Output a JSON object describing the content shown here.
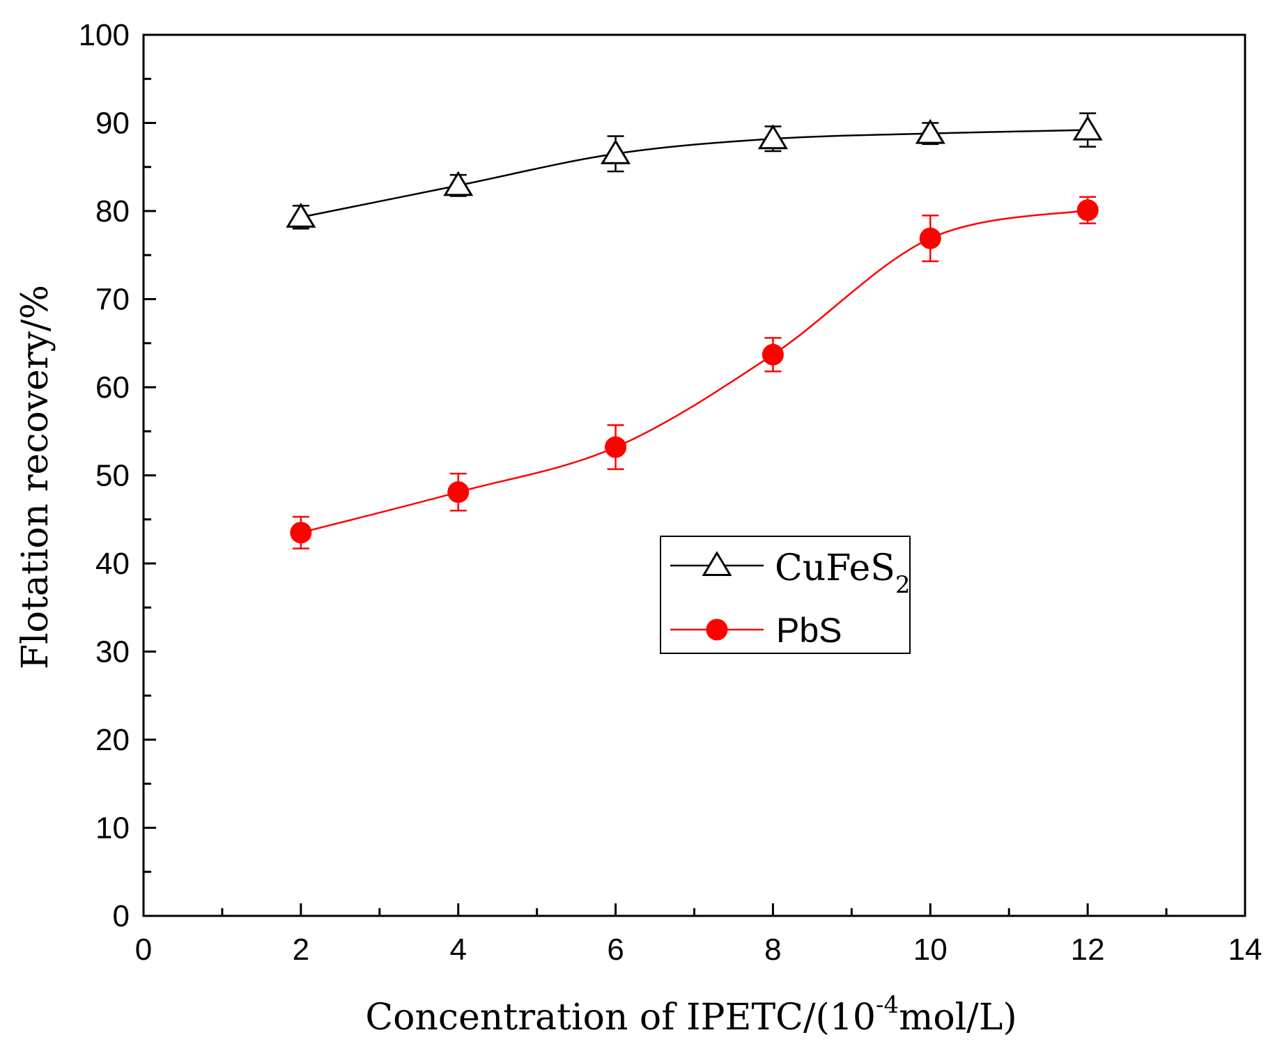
{
  "chart_data": {
    "type": "line",
    "title": "",
    "xlabel": "Concentration of IPETC/(10",
    "xlabel_superscript": "-4",
    "xlabel_suffix": "mol/L)",
    "ylabel": "Flotation recovery/%",
    "xlim": [
      0,
      14
    ],
    "ylim": [
      0,
      100
    ],
    "xticks": [
      0,
      2,
      4,
      6,
      8,
      10,
      12,
      14
    ],
    "yticks": [
      0,
      10,
      20,
      30,
      40,
      50,
      60,
      70,
      80,
      90,
      100
    ],
    "grid": false,
    "legend_position": "center-right",
    "series": [
      {
        "name": "CuFeS",
        "name_subscript": "2",
        "color": "#000000",
        "marker": "open-triangle",
        "x": [
          2,
          4,
          6,
          8,
          10,
          12
        ],
        "y": [
          79.3,
          82.9,
          86.5,
          88.2,
          88.8,
          89.2
        ],
        "error": [
          1.3,
          1.2,
          2.0,
          1.4,
          1.2,
          1.9
        ]
      },
      {
        "name": "PbS",
        "name_subscript": "",
        "color": "#ff0000",
        "marker": "filled-circle",
        "x": [
          2,
          4,
          6,
          8,
          10,
          12
        ],
        "y": [
          43.5,
          48.1,
          53.2,
          63.7,
          76.9,
          80.1
        ],
        "error": [
          1.8,
          2.1,
          2.5,
          1.9,
          2.6,
          1.5
        ]
      }
    ]
  }
}
